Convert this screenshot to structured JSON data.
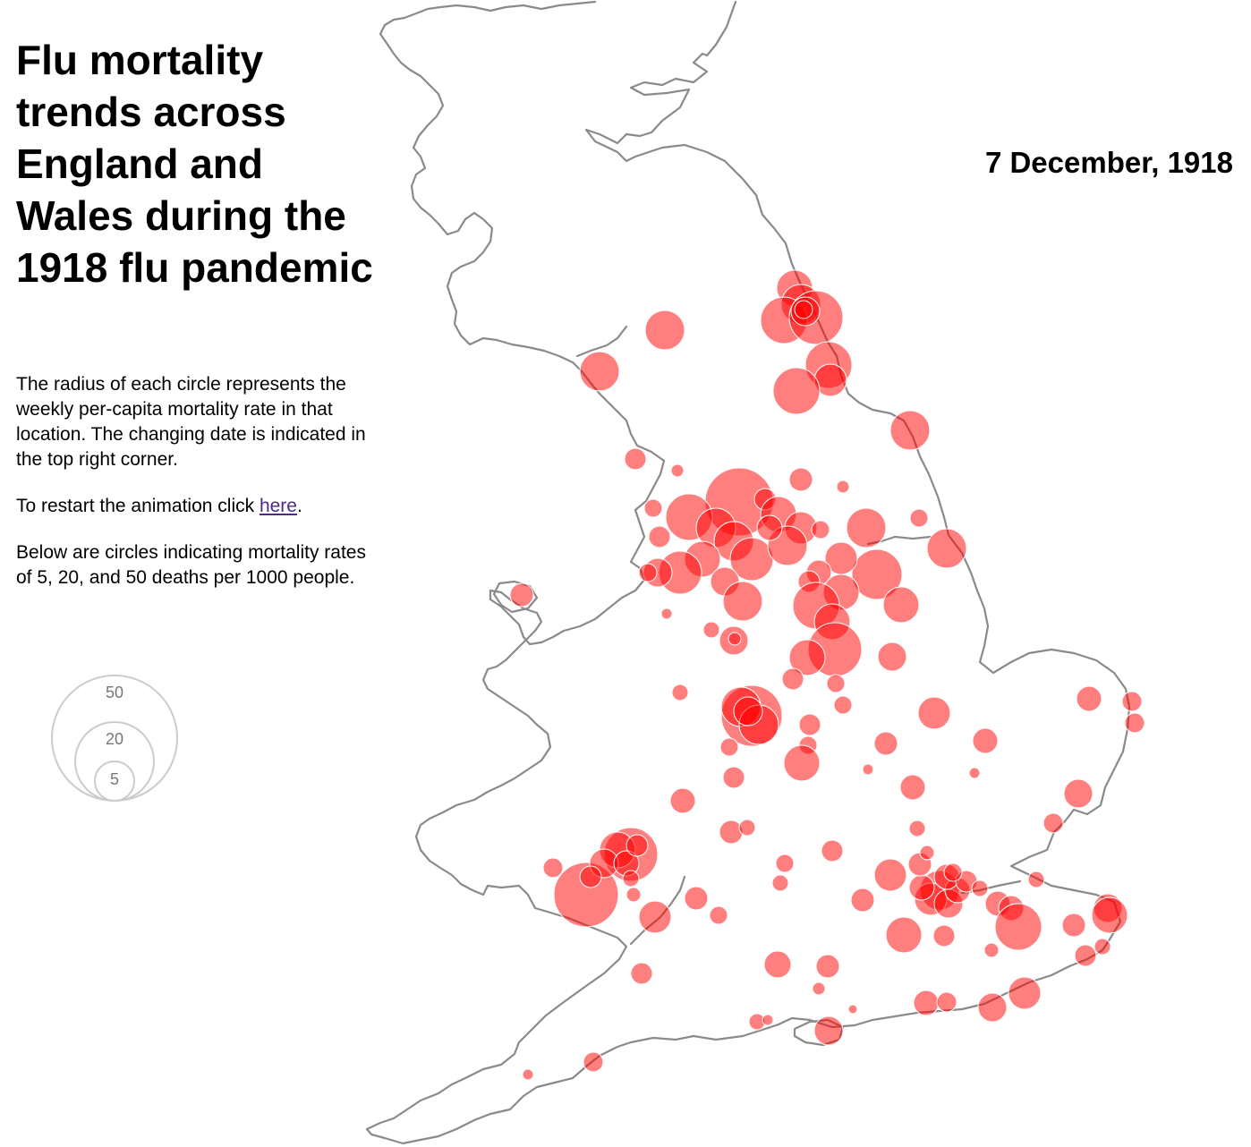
{
  "title": "Flu mortality trends across England and Wales during the 1918 flu pandemic",
  "description": "The radius of each circle represents the weekly per-capita mortality rate in that location. The changing date is indicated in the top right corner.",
  "restart": {
    "before": "To restart the animation click ",
    "link": "here",
    "after": "."
  },
  "legend_text": "Below are circles indicating mortality rates of 5, 20, and 50 deaths per 1000 people.",
  "date": "7 December, 1918",
  "legend": {
    "items": [
      {
        "label": "50",
        "value": 50
      },
      {
        "label": "20",
        "value": 20
      },
      {
        "label": "5",
        "value": 5
      }
    ]
  },
  "colors": {
    "circle": "#ff0000",
    "legend_stroke": "#cccccc",
    "coast": "#8a8a8a",
    "link": "#4b2a8a"
  }
}
